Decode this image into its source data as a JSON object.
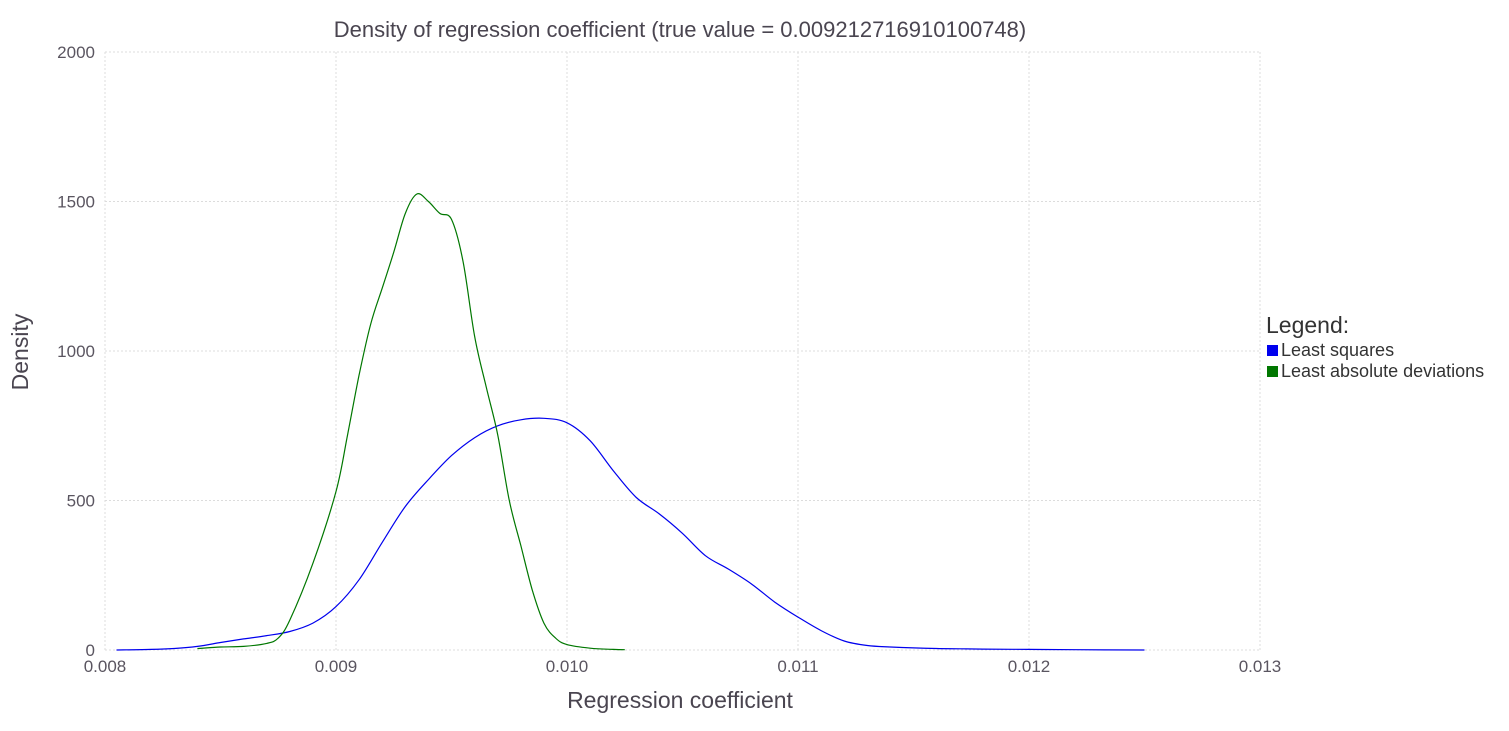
{
  "chart_data": {
    "type": "line",
    "title": "Density of regression coefficient (true value = 0.009212716910100748)",
    "xlabel": "Regression coefficient",
    "ylabel": "Density",
    "xlim": [
      0.008,
      0.013
    ],
    "ylim": [
      0,
      2000
    ],
    "x_ticks": [
      "0.008",
      "0.009",
      "0.010",
      "0.011",
      "0.012",
      "0.013"
    ],
    "y_ticks": [
      "0",
      "500",
      "1000",
      "1500",
      "2000"
    ],
    "grid": true,
    "legend_placement": "right",
    "legend_title": "Legend:",
    "series": [
      {
        "name": "Least squares",
        "color": "#0000ee",
        "points": [
          [
            0.00805,
            0
          ],
          [
            0.0082,
            2
          ],
          [
            0.0083,
            5
          ],
          [
            0.0084,
            12
          ],
          [
            0.0085,
            25
          ],
          [
            0.0086,
            37
          ],
          [
            0.0087,
            48
          ],
          [
            0.0088,
            62
          ],
          [
            0.0089,
            90
          ],
          [
            0.009,
            145
          ],
          [
            0.0091,
            235
          ],
          [
            0.0092,
            360
          ],
          [
            0.0093,
            480
          ],
          [
            0.0094,
            570
          ],
          [
            0.0095,
            650
          ],
          [
            0.0096,
            710
          ],
          [
            0.0097,
            750
          ],
          [
            0.0098,
            770
          ],
          [
            0.0099,
            775
          ],
          [
            0.01,
            760
          ],
          [
            0.0101,
            700
          ],
          [
            0.0102,
            600
          ],
          [
            0.0103,
            510
          ],
          [
            0.0104,
            455
          ],
          [
            0.0105,
            390
          ],
          [
            0.0106,
            315
          ],
          [
            0.0107,
            270
          ],
          [
            0.0108,
            220
          ],
          [
            0.0109,
            160
          ],
          [
            0.011,
            110
          ],
          [
            0.0111,
            65
          ],
          [
            0.0112,
            30
          ],
          [
            0.0113,
            15
          ],
          [
            0.0114,
            10
          ],
          [
            0.0115,
            7
          ],
          [
            0.0116,
            5
          ],
          [
            0.0117,
            4
          ],
          [
            0.0118,
            3
          ],
          [
            0.012,
            2
          ],
          [
            0.0122,
            1
          ],
          [
            0.0125,
            0
          ]
        ]
      },
      {
        "name": "Least absolute deviations",
        "color": "#007700",
        "points": [
          [
            0.0084,
            5
          ],
          [
            0.0085,
            10
          ],
          [
            0.0086,
            12
          ],
          [
            0.0087,
            22
          ],
          [
            0.00875,
            40
          ],
          [
            0.0088,
            100
          ],
          [
            0.0089,
            290
          ],
          [
            0.009,
            530
          ],
          [
            0.00905,
            720
          ],
          [
            0.0091,
            920
          ],
          [
            0.00915,
            1090
          ],
          [
            0.0092,
            1210
          ],
          [
            0.00925,
            1330
          ],
          [
            0.0093,
            1460
          ],
          [
            0.00935,
            1525
          ],
          [
            0.0094,
            1500
          ],
          [
            0.00945,
            1460
          ],
          [
            0.0095,
            1440
          ],
          [
            0.00955,
            1300
          ],
          [
            0.0096,
            1050
          ],
          [
            0.00965,
            880
          ],
          [
            0.0097,
            720
          ],
          [
            0.00975,
            500
          ],
          [
            0.0098,
            350
          ],
          [
            0.00985,
            200
          ],
          [
            0.0099,
            90
          ],
          [
            0.00995,
            40
          ],
          [
            0.01,
            18
          ],
          [
            0.0101,
            6
          ],
          [
            0.0102,
            2
          ],
          [
            0.01025,
            1
          ]
        ]
      }
    ]
  }
}
